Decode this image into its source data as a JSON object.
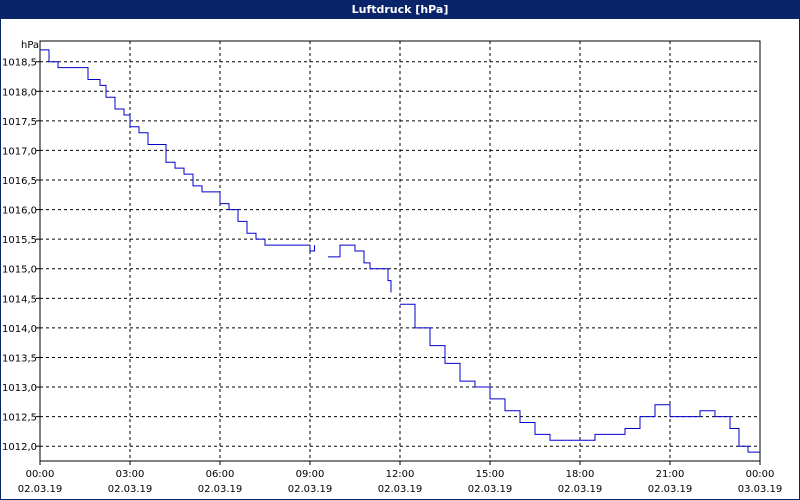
{
  "window": {
    "title": "Luftdruck [hPa]"
  },
  "chart_data": {
    "type": "line",
    "title": "Luftdruck [hPa]",
    "ylabel": "hPa",
    "xlabel": "",
    "ylim": [
      1011.75,
      1018.85
    ],
    "xlim": [
      0,
      24
    ],
    "grid": true,
    "legend": "none",
    "line_color": "#0000cc",
    "y_ticks": [
      "1012,0",
      "1012,5",
      "1013,0",
      "1013,5",
      "1014,0",
      "1014,5",
      "1015,0",
      "1015,5",
      "1016,0",
      "1016,5",
      "1017,0",
      "1017,5",
      "1018,0",
      "1018,5"
    ],
    "x_ticks": [
      {
        "time": "00:00",
        "date": "02.03.19"
      },
      {
        "time": "03:00",
        "date": "02.03.19"
      },
      {
        "time": "06:00",
        "date": "02.03.19"
      },
      {
        "time": "09:00",
        "date": "02.03.19"
      },
      {
        "time": "12:00",
        "date": "02.03.19"
      },
      {
        "time": "15:00",
        "date": "02.03.19"
      },
      {
        "time": "18:00",
        "date": "02.03.19"
      },
      {
        "time": "21:00",
        "date": "02.03.19"
      },
      {
        "time": "00:00",
        "date": "03.03.19"
      }
    ],
    "series": [
      {
        "segment": 1,
        "x": [
          0.0,
          0.3,
          0.6,
          1.0,
          1.3,
          1.6,
          2.0,
          2.2,
          2.5,
          2.8,
          3.0,
          3.3,
          3.6,
          3.9,
          4.2,
          4.5,
          4.8,
          5.1,
          5.4,
          5.7,
          6.0,
          6.3,
          6.6,
          6.9,
          7.2,
          7.5,
          7.8,
          8.1,
          8.4,
          8.7,
          9.0,
          9.15
        ],
        "y": [
          1018.7,
          1018.5,
          1018.4,
          1018.4,
          1018.4,
          1018.2,
          1018.1,
          1017.9,
          1017.7,
          1017.6,
          1017.4,
          1017.3,
          1017.1,
          1017.1,
          1016.8,
          1016.7,
          1016.6,
          1016.4,
          1016.3,
          1016.3,
          1016.1,
          1016.0,
          1015.8,
          1015.6,
          1015.5,
          1015.4,
          1015.4,
          1015.4,
          1015.4,
          1015.4,
          1015.3,
          1015.4
        ]
      },
      {
        "segment": 2,
        "x": [
          9.6,
          9.8,
          10.0,
          10.2,
          10.5,
          10.8,
          11.0,
          11.3,
          11.6,
          11.7
        ],
        "y": [
          1015.2,
          1015.2,
          1015.4,
          1015.4,
          1015.3,
          1015.1,
          1015.0,
          1015.0,
          1014.8,
          1014.6
        ]
      },
      {
        "segment": 3,
        "x": [
          12.0,
          12.5,
          13.0,
          13.5,
          14.0,
          14.5,
          15.0,
          15.5,
          16.0,
          16.5,
          17.0,
          17.5,
          18.0,
          18.5,
          19.0,
          19.5,
          20.0,
          20.5,
          21.0,
          21.5,
          22.0,
          22.5,
          23.0,
          23.3,
          23.6,
          24.0
        ],
        "y": [
          1014.4,
          1014.0,
          1013.7,
          1013.4,
          1013.1,
          1013.0,
          1012.8,
          1012.6,
          1012.4,
          1012.2,
          1012.1,
          1012.1,
          1012.1,
          1012.2,
          1012.2,
          1012.3,
          1012.5,
          1012.7,
          1012.5,
          1012.5,
          1012.6,
          1012.5,
          1012.3,
          1012.0,
          1011.9,
          1011.9
        ]
      }
    ]
  }
}
